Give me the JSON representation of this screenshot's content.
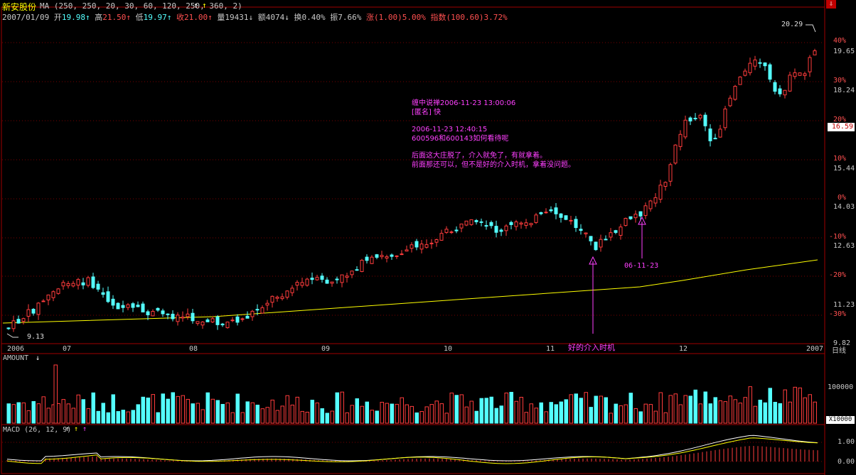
{
  "header": {
    "stock_name": "新安股份",
    "ma_label": "MA (250, 250, 20, 30, 60, 120, 250, 360, 2)",
    "arrow_white": "↑",
    "arrow_yellow": "↑",
    "date": "2007/01/09",
    "open_label": "开",
    "open_value": "19.98",
    "open_arrow": "↑",
    "high_label": "高",
    "high_value": "21.50",
    "high_arrow": "↑",
    "low_label": "低",
    "low_value": "19.97",
    "low_arrow": "↑",
    "close_label": "收",
    "close_value": "21.00",
    "close_arrow": "↑",
    "volume_label": "量",
    "volume_value": "19431",
    "volume_arrow": "↓",
    "amount_label": "额",
    "amount_value": "4074",
    "amount_arrow": "↓",
    "turnover_label": "换",
    "turnover_value": "0.40%",
    "amplitude_label": "振",
    "amplitude_value": "7.66%",
    "rise_label": "涨",
    "rise_value": "(1.00)5.00%",
    "index_label": "指数",
    "index_value": "(100.60)3.72%"
  },
  "annotations": {
    "note_lines": [
      "缠中说禅2006-11-23 13:00:06",
      "[匿名] 快",
      "",
      "2006-11-23 12:40:15",
      "600596和600143如何看待呢",
      "",
      "后面这大庄脱了，介入就免了，有就拿着。",
      "前面那还可以，但不是好的介入时机，拿着没问题。"
    ],
    "label_good": "好的介入时机",
    "label_date": "06-11-23",
    "max_price_label": "20.29",
    "min_price_label": "9.13"
  },
  "right_axis": {
    "prices": [
      "19.65",
      "18.24",
      "15.44",
      "14.03",
      "12.63",
      "11.23",
      "9.82"
    ],
    "percents": [
      "40%",
      "30%",
      "20%",
      "10%",
      "0%",
      "-10%",
      "-20%",
      "-30%"
    ],
    "current_price": "16.59",
    "corner_icon": "⇩"
  },
  "x_axis": {
    "labels": [
      "2006",
      "07",
      "08",
      "09",
      "10",
      "11",
      "12",
      "2007"
    ],
    "period": "日线"
  },
  "volume_panel": {
    "title": "AMOUNT",
    "arrow": "↓",
    "scale_value": "100000",
    "unit": "X10000"
  },
  "macd_panel": {
    "title": "MACD (26, 12, 9)",
    "arrow_white": "↑",
    "arrow_yellow": "↑",
    "arrow_magenta": "↑",
    "scale_top": "1.00",
    "scale_bottom": "0.00"
  },
  "colors": {
    "up": "#ff3c3c",
    "down": "#54ffff",
    "ma": "#ffff00",
    "annotation": "#ff40ff",
    "grid": "#8b0000",
    "axis_text": "#c8c8c8"
  }
}
